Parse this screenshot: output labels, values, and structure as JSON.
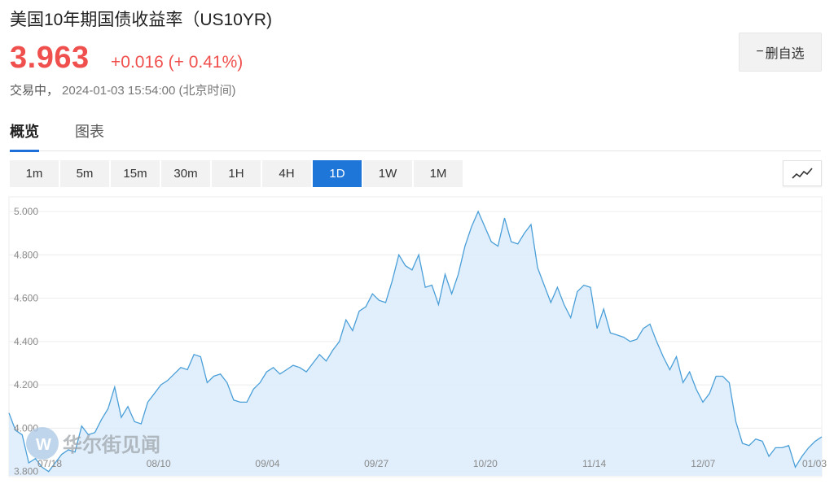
{
  "header": {
    "title": "美国10年期国债收益率（US10YR)",
    "price": "3.963",
    "change": "+0.016 (+ 0.41%)",
    "status_label": "交易中，",
    "timestamp": "2024-01-03 15:54:00 (北京时间)"
  },
  "watch_button": {
    "icon": "minus-icon",
    "label": "删自选"
  },
  "tabs": [
    {
      "label": "概览",
      "active": true
    },
    {
      "label": "图表",
      "active": false
    }
  ],
  "periods": [
    {
      "label": "1m",
      "active": false
    },
    {
      "label": "5m",
      "active": false
    },
    {
      "label": "15m",
      "active": false
    },
    {
      "label": "30m",
      "active": false
    },
    {
      "label": "1H",
      "active": false
    },
    {
      "label": "4H",
      "active": false
    },
    {
      "label": "1D",
      "active": true
    },
    {
      "label": "1W",
      "active": false
    },
    {
      "label": "1M",
      "active": false
    }
  ],
  "chart_type_button": {
    "icon": "line-chart-icon"
  },
  "watermark": {
    "text": "华尔街见闻",
    "logo": "wallstreetcn-logo"
  },
  "colors": {
    "up": "#f0504d",
    "accent": "#1f76d9",
    "line": "#4a9fd8",
    "area": "#dcecfb"
  },
  "chart_data": {
    "type": "area",
    "title": "",
    "xlabel": "",
    "ylabel": "",
    "ylim": [
      3.78,
      5.06
    ],
    "y_ticks": [
      "5.000",
      "4.800",
      "4.600",
      "4.400",
      "4.200",
      "4.000",
      "3.800"
    ],
    "x_ticks": [
      "07/18",
      "08/10",
      "09/04",
      "09/27",
      "10/20",
      "11/14",
      "12/07",
      "01/03"
    ],
    "grid": true,
    "values": [
      4.07,
      3.99,
      3.97,
      3.84,
      3.86,
      3.82,
      3.8,
      3.84,
      3.88,
      3.9,
      3.89,
      4.01,
      3.97,
      3.98,
      4.04,
      4.09,
      4.19,
      4.05,
      4.1,
      4.03,
      4.02,
      4.12,
      4.16,
      4.2,
      4.22,
      4.25,
      4.28,
      4.27,
      4.34,
      4.33,
      4.21,
      4.24,
      4.25,
      4.21,
      4.13,
      4.12,
      4.12,
      4.18,
      4.21,
      4.26,
      4.28,
      4.25,
      4.27,
      4.29,
      4.28,
      4.26,
      4.3,
      4.34,
      4.31,
      4.36,
      4.4,
      4.5,
      4.45,
      4.54,
      4.56,
      4.62,
      4.59,
      4.58,
      4.68,
      4.8,
      4.75,
      4.73,
      4.8,
      4.65,
      4.66,
      4.57,
      4.71,
      4.62,
      4.71,
      4.84,
      4.93,
      5.0,
      4.93,
      4.86,
      4.84,
      4.97,
      4.86,
      4.85,
      4.9,
      4.94,
      4.74,
      4.66,
      4.58,
      4.65,
      4.57,
      4.51,
      4.63,
      4.66,
      4.65,
      4.46,
      4.55,
      4.44,
      4.43,
      4.42,
      4.4,
      4.41,
      4.46,
      4.48,
      4.4,
      4.33,
      4.27,
      4.33,
      4.21,
      4.26,
      4.18,
      4.12,
      4.16,
      4.24,
      4.24,
      4.21,
      4.03,
      3.93,
      3.92,
      3.95,
      3.94,
      3.87,
      3.91,
      3.91,
      3.92,
      3.82,
      3.87,
      3.91,
      3.94,
      3.96
    ]
  }
}
